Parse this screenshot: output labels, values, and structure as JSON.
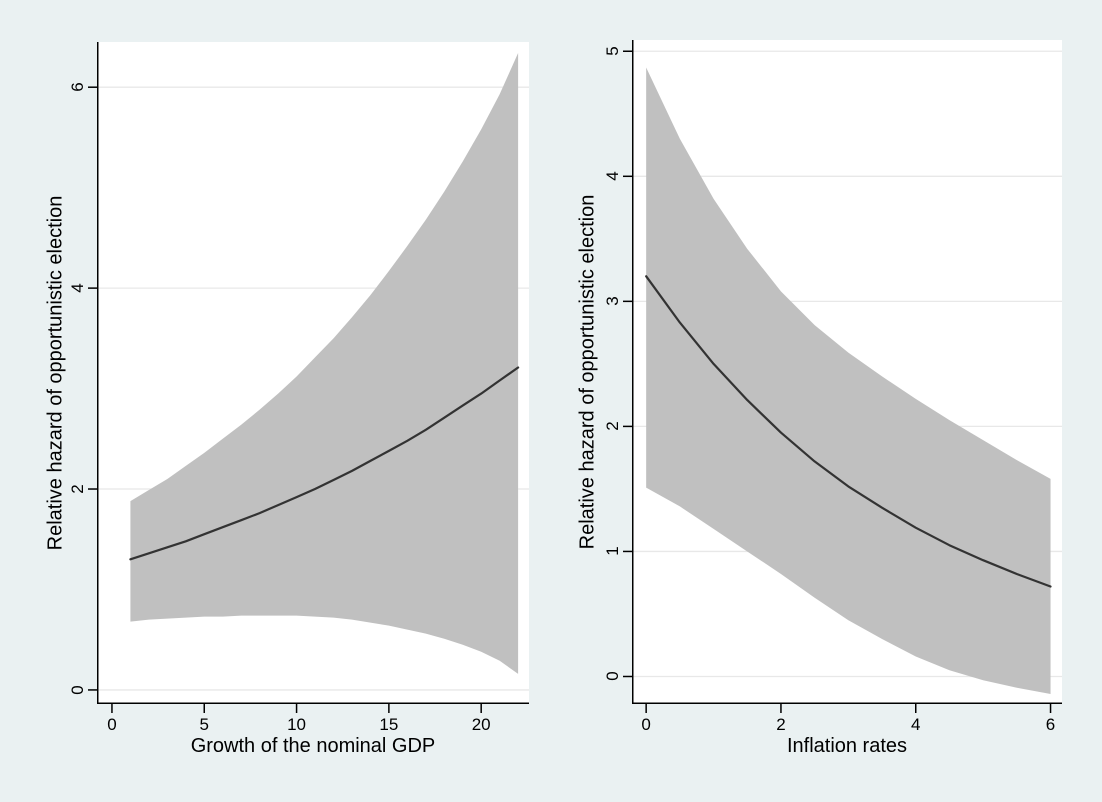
{
  "figure": {
    "description": "Two-panel relative hazard plot with 95% confidence bands",
    "panel_count": 2
  },
  "colors": {
    "background": "#eaf1f2",
    "plot_background": "#ffffff",
    "band": "#c0c0c0",
    "line": "#333333",
    "grid": "#e8e8e8",
    "axis": "#000000"
  },
  "chart_data": [
    {
      "type": "area",
      "subtype": "line-with-confidence-band",
      "title": "",
      "xlabel": "Growth of the nominal GDP",
      "ylabel": "Relative hazard of opportunistic election",
      "xlim": [
        -0.81,
        22.59
      ],
      "ylim": [
        -0.14,
        6.45
      ],
      "xticks": [
        0,
        5,
        10,
        15,
        20
      ],
      "yticks": [
        0,
        2,
        4,
        6
      ],
      "grid": "horizontal",
      "legend": "none",
      "x": [
        1,
        2,
        3,
        4,
        5,
        6,
        7,
        8,
        9,
        10,
        11,
        12,
        13,
        14,
        15,
        16,
        17,
        18,
        19,
        20,
        21,
        22
      ],
      "series": [
        {
          "name": "relative-hazard",
          "values": [
            1.3,
            1.36,
            1.42,
            1.48,
            1.55,
            1.62,
            1.69,
            1.76,
            1.84,
            1.92,
            2.0,
            2.09,
            2.18,
            2.28,
            2.38,
            2.48,
            2.59,
            2.71,
            2.83,
            2.95,
            3.08,
            3.21
          ]
        },
        {
          "name": "ci-upper",
          "values": [
            1.88,
            1.99,
            2.1,
            2.23,
            2.36,
            2.5,
            2.64,
            2.79,
            2.95,
            3.12,
            3.31,
            3.5,
            3.71,
            3.93,
            4.17,
            4.42,
            4.68,
            4.96,
            5.26,
            5.58,
            5.93,
            6.34
          ]
        },
        {
          "name": "ci-lower",
          "values": [
            0.68,
            0.7,
            0.71,
            0.72,
            0.73,
            0.73,
            0.74,
            0.74,
            0.74,
            0.74,
            0.73,
            0.72,
            0.7,
            0.67,
            0.64,
            0.6,
            0.56,
            0.51,
            0.45,
            0.38,
            0.29,
            0.16
          ]
        }
      ]
    },
    {
      "type": "area",
      "subtype": "line-with-confidence-band",
      "title": "",
      "xlabel": "Inflation rates",
      "ylabel": "Relative hazard of opportunistic election",
      "xlim": [
        -0.21,
        6.17
      ],
      "ylim": [
        -0.22,
        5.09
      ],
      "xticks": [
        0,
        2,
        4,
        6
      ],
      "yticks": [
        0,
        1,
        2,
        3,
        4,
        5
      ],
      "grid": "horizontal",
      "legend": "none",
      "x": [
        0,
        0.5,
        1,
        1.5,
        2,
        2.5,
        3,
        3.5,
        4,
        4.5,
        5,
        5.5,
        6
      ],
      "series": [
        {
          "name": "relative-hazard",
          "values": [
            3.2,
            2.83,
            2.5,
            2.21,
            1.95,
            1.72,
            1.52,
            1.35,
            1.19,
            1.05,
            0.93,
            0.82,
            0.72
          ]
        },
        {
          "name": "ci-upper",
          "values": [
            4.87,
            4.3,
            3.82,
            3.42,
            3.08,
            2.81,
            2.59,
            2.4,
            2.22,
            2.05,
            1.89,
            1.73,
            1.58
          ]
        },
        {
          "name": "ci-lower",
          "values": [
            1.51,
            1.36,
            1.18,
            1.0,
            0.82,
            0.63,
            0.45,
            0.3,
            0.16,
            0.05,
            -0.03,
            -0.09,
            -0.14
          ]
        }
      ]
    }
  ]
}
